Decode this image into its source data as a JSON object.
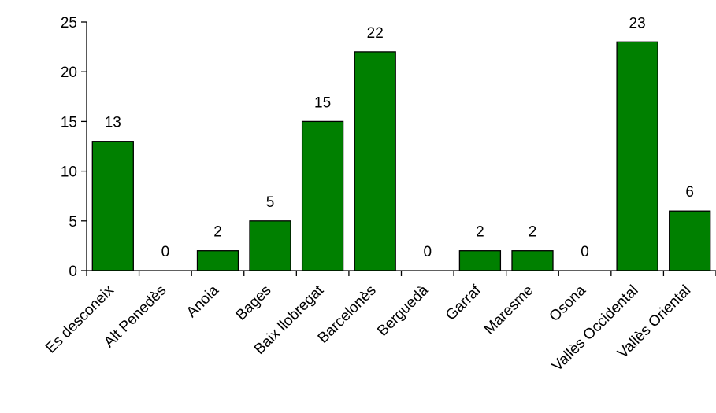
{
  "chart_data": {
    "type": "bar",
    "categories": [
      "Es desconeix",
      "Alt Penedès",
      "Anoia",
      "Bages",
      "Baix llobregat",
      "Barcelonès",
      "Berguedà",
      "Garraf",
      "Maresme",
      "Osona",
      "Vallès Occidental",
      "Vallès Oriental"
    ],
    "values": [
      13,
      0,
      2,
      5,
      15,
      22,
      0,
      2,
      2,
      0,
      23,
      6
    ],
    "ylim": [
      0,
      25
    ],
    "yticks": [
      "0",
      "5",
      "10",
      "15",
      "20",
      "25"
    ],
    "title": "",
    "xlabel": "",
    "ylabel": "",
    "grid": false,
    "data_labels": true,
    "bar_color": "#008000",
    "bar_edge_color": "#000000"
  }
}
